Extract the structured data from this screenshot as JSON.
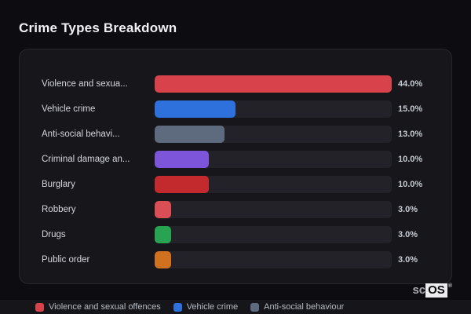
{
  "page": {
    "title": "Crime Types Breakdown"
  },
  "chart_data": {
    "type": "bar",
    "orientation": "horizontal",
    "title": "Crime Types Breakdown",
    "categories": [
      "Violence and sexua...",
      "Vehicle crime",
      "Anti-social behavi...",
      "Criminal damage an...",
      "Burglary",
      "Robbery",
      "Drugs",
      "Public order"
    ],
    "values": [
      44.0,
      15.0,
      13.0,
      10.0,
      10.0,
      3.0,
      3.0,
      3.0
    ],
    "value_labels": [
      "44.0%",
      "15.0%",
      "13.0%",
      "10.0%",
      "10.0%",
      "3.0%",
      "3.0%",
      "3.0%"
    ],
    "bar_colors": [
      "#d8434b",
      "#2e70dc",
      "#5e6a7d",
      "#7c55d9",
      "#c22a2d",
      "#d94f55",
      "#28a351",
      "#d0711f"
    ],
    "xlim": [
      0,
      44
    ],
    "bars_scaled_to_max": true,
    "grid": false,
    "legend_position": "bottom"
  },
  "legend": {
    "items": [
      {
        "label": "Violence and sexual offences",
        "color": "#d8434b"
      },
      {
        "label": "Vehicle crime",
        "color": "#2e70dc"
      },
      {
        "label": "Anti-social behaviour",
        "color": "#5e6a7d"
      }
    ]
  },
  "watermark": {
    "prefix": "sc",
    "brand": "OS",
    "registered": "®"
  },
  "colors": {
    "page_bg": "#0d0d11",
    "card_bg": "#16161b",
    "card_border": "#26262d",
    "track_bg": "#222228",
    "title_text": "#f0f1f3",
    "label_text": "#d4d7dc",
    "value_text": "#c6cbd2",
    "legend_text": "#b7bcc4"
  }
}
